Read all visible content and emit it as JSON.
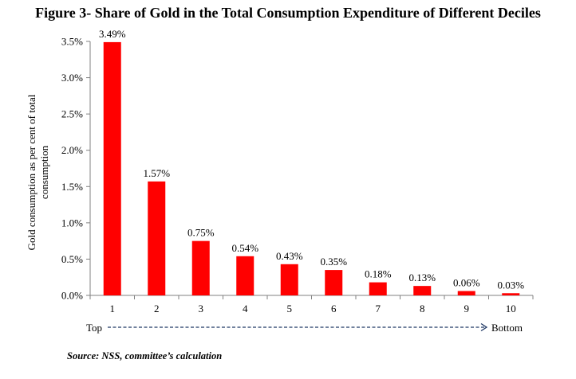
{
  "title": "Figure 3- Share of Gold in the Total Consumption Expenditure of Different Deciles",
  "source": "Source: NSS, committee’s calculation",
  "colors": {
    "bar": "#FF0000",
    "axis": "#808080",
    "arrow": "#1F3864",
    "text": "#000000"
  },
  "chart_data": {
    "type": "bar",
    "title": "Figure 3- Share of Gold in the Total Consumption Expenditure of Different Deciles",
    "ylabel": "Gold consumption as per cent of total consumption",
    "ylabel_lines": [
      "Gold consumption as per cent of total",
      "consumption"
    ],
    "xlabel": "",
    "categories": [
      "1",
      "2",
      "3",
      "4",
      "5",
      "6",
      "7",
      "8",
      "9",
      "10"
    ],
    "values": [
      3.49,
      1.57,
      0.75,
      0.54,
      0.43,
      0.35,
      0.18,
      0.13,
      0.06,
      0.03
    ],
    "data_labels": [
      "3.49%",
      "1.57%",
      "0.75%",
      "0.54%",
      "0.43%",
      "0.35%",
      "0.18%",
      "0.13%",
      "0.06%",
      "0.03%"
    ],
    "ylim": [
      0,
      3.5
    ],
    "yticks": [
      0,
      0.5,
      1.0,
      1.5,
      2.0,
      2.5,
      3.0,
      3.5
    ],
    "ytick_labels": [
      "0.0%",
      "0.5%",
      "1.0%",
      "1.5%",
      "2.0%",
      "2.5%",
      "3.0%",
      "3.5%"
    ],
    "grid": false,
    "legend": "none",
    "direction_start_label": "Top",
    "direction_end_label": "Bottom"
  }
}
